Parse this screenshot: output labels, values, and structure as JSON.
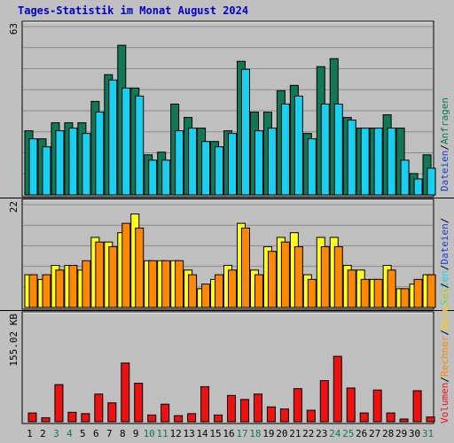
{
  "title": "Tages-Statistik im Monat August 2024",
  "colors": {
    "background": "#c0c0c0",
    "plot_background": "#bfbfbf",
    "gridline": "#8c8c8c",
    "title": "#0000cc",
    "day_weekday": "#000000",
    "day_weekend": "#117755",
    "anfragen": "#117755",
    "dateien": "#1ad0f0",
    "seiten": "#1ad0f0",
    "besuche": "#ffff22",
    "rechner": "#ff8800",
    "volumen": "#ee1111",
    "separator": "#000000"
  },
  "chart_data": [
    {
      "type": "bar",
      "panel": "requests",
      "ytop_label": "63",
      "ylim": [
        0,
        63
      ],
      "x": [
        "1",
        "2",
        "3",
        "4",
        "5",
        "6",
        "7",
        "8",
        "9",
        "10",
        "11",
        "12",
        "13",
        "14",
        "15",
        "16",
        "17",
        "18",
        "19",
        "20",
        "21",
        "22",
        "23",
        "24",
        "25",
        "26",
        "27",
        "28",
        "29",
        "30",
        "31"
      ],
      "series": [
        {
          "name": "Anfragen",
          "color": "#117755",
          "values": [
            24,
            21,
            27,
            27,
            27,
            35,
            45,
            56,
            40,
            15,
            16,
            34,
            29,
            25,
            20,
            24,
            50,
            31,
            31,
            39,
            41,
            23,
            48,
            51,
            29,
            25,
            25,
            30,
            25,
            8,
            15
          ]
        },
        {
          "name": "Dateien",
          "color": "#1ad0f0",
          "values": [
            21,
            18,
            24,
            25,
            23,
            31,
            43,
            40,
            37,
            13,
            13,
            24,
            25,
            20,
            18,
            23,
            47,
            24,
            25,
            34,
            37,
            21,
            34,
            34,
            28,
            25,
            25,
            25,
            13,
            6,
            10
          ]
        }
      ]
    },
    {
      "type": "bar",
      "panel": "visits",
      "ytop_label": "22",
      "ylim": [
        0,
        22
      ],
      "x": [
        "1",
        "2",
        "3",
        "4",
        "5",
        "6",
        "7",
        "8",
        "9",
        "10",
        "11",
        "12",
        "13",
        "14",
        "15",
        "16",
        "17",
        "18",
        "19",
        "20",
        "21",
        "22",
        "23",
        "24",
        "25",
        "26",
        "27",
        "28",
        "29",
        "30",
        "31"
      ],
      "series": [
        {
          "name": "Besuche",
          "color": "#ffff22",
          "values": [
            7,
            6,
            9,
            9,
            8,
            15,
            14,
            16,
            20,
            10,
            10,
            10,
            8,
            4,
            6,
            9,
            18,
            8,
            13,
            15,
            16,
            7,
            15,
            15,
            9,
            8,
            6,
            9,
            4,
            5,
            7
          ]
        },
        {
          "name": "Rechner",
          "color": "#ff8800",
          "values": [
            7,
            7,
            8,
            9,
            10,
            14,
            13,
            18,
            17,
            10,
            10,
            10,
            7,
            5,
            7,
            8,
            17,
            7,
            12,
            14,
            13,
            6,
            13,
            13,
            8,
            6,
            6,
            8,
            4,
            6,
            7
          ]
        }
      ]
    },
    {
      "type": "bar",
      "panel": "volume",
      "ytop_label": "155.02 KB",
      "ylim": [
        0,
        155.02
      ],
      "x": [
        "1",
        "2",
        "3",
        "4",
        "5",
        "6",
        "7",
        "8",
        "9",
        "10",
        "11",
        "12",
        "13",
        "14",
        "15",
        "16",
        "17",
        "18",
        "19",
        "20",
        "21",
        "22",
        "23",
        "24",
        "25",
        "26",
        "27",
        "28",
        "29",
        "30",
        "31"
      ],
      "series": [
        {
          "name": "Volumen",
          "color": "#ee1111",
          "values": [
            13,
            6,
            55,
            14,
            12,
            41,
            28,
            87,
            57,
            10,
            26,
            9,
            12,
            52,
            10,
            39,
            33,
            41,
            22,
            19,
            49,
            17,
            61,
            97,
            50,
            13,
            47,
            13,
            4,
            46,
            7
          ]
        }
      ]
    }
  ],
  "days": {
    "labels": [
      "1",
      "2",
      "3",
      "4",
      "5",
      "6",
      "7",
      "8",
      "9",
      "10",
      "11",
      "12",
      "13",
      "14",
      "15",
      "16",
      "17",
      "18",
      "19",
      "20",
      "21",
      "22",
      "23",
      "24",
      "25",
      "26",
      "27",
      "28",
      "29",
      "30",
      "31"
    ],
    "weekend": [
      false,
      false,
      true,
      true,
      false,
      false,
      false,
      false,
      false,
      true,
      true,
      false,
      false,
      false,
      false,
      false,
      true,
      true,
      false,
      false,
      false,
      false,
      false,
      true,
      true,
      false,
      false,
      false,
      false,
      false,
      true
    ]
  },
  "legend": {
    "requests": [
      {
        "label": "Dateien",
        "color": "#1a3fd6"
      },
      {
        "label": "/",
        "color": "#000000"
      },
      {
        "label": "Anfragen",
        "color": "#117755"
      }
    ],
    "visits": [
      {
        "label": "Seiten",
        "color": "#1ad0f0"
      },
      {
        "label": "/",
        "color": "#000000"
      },
      {
        "label": "Dateien",
        "color": "#1a3fd6"
      },
      {
        "label": "/",
        "color": "#000000"
      }
    ],
    "volume": [
      {
        "label": "Volumen",
        "color": "#ee1111"
      },
      {
        "label": "/",
        "color": "#000000"
      },
      {
        "label": "Rechner",
        "color": "#ff8800"
      },
      {
        "label": "/",
        "color": "#000000"
      },
      {
        "label": "Besuche",
        "color": "#ffcc00"
      },
      {
        "label": "/",
        "color": "#000000"
      }
    ]
  }
}
